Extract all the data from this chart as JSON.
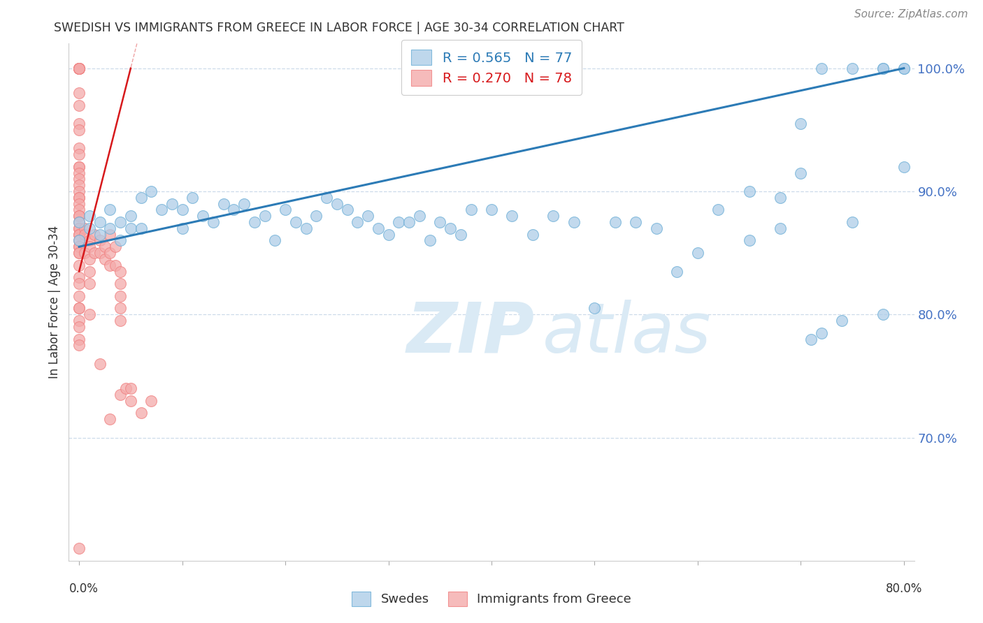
{
  "title": "SWEDISH VS IMMIGRANTS FROM GREECE IN LABOR FORCE | AGE 30-34 CORRELATION CHART",
  "source": "Source: ZipAtlas.com",
  "ylabel": "In Labor Force | Age 30-34",
  "legend_label1": "Swedes",
  "legend_label2": "Immigrants from Greece",
  "r1": 0.565,
  "n1": 77,
  "r2": 0.27,
  "n2": 78,
  "blue_color": "#aecde8",
  "pink_color": "#f4aaaa",
  "blue_edge_color": "#6baed6",
  "pink_edge_color": "#f08080",
  "blue_line_color": "#2c7bb6",
  "pink_line_color": "#d7191c",
  "grid_color": "#c8d8e8",
  "text_color": "#4472c4",
  "title_color": "#333333",
  "xlim": [
    0.0,
    0.8
  ],
  "ylim": [
    60.0,
    102.0
  ],
  "ytick_vals": [
    70,
    80,
    90,
    100
  ],
  "blue_x": [
    0.0,
    0.0,
    0.01,
    0.01,
    0.02,
    0.02,
    0.03,
    0.03,
    0.04,
    0.04,
    0.05,
    0.05,
    0.06,
    0.06,
    0.07,
    0.08,
    0.09,
    0.1,
    0.1,
    0.11,
    0.12,
    0.13,
    0.14,
    0.15,
    0.16,
    0.17,
    0.18,
    0.19,
    0.2,
    0.21,
    0.22,
    0.23,
    0.24,
    0.25,
    0.26,
    0.27,
    0.28,
    0.29,
    0.3,
    0.31,
    0.32,
    0.33,
    0.34,
    0.35,
    0.36,
    0.37,
    0.38,
    0.4,
    0.42,
    0.44,
    0.46,
    0.48,
    0.5,
    0.52,
    0.54,
    0.56,
    0.58,
    0.6,
    0.62,
    0.65,
    0.68,
    0.7,
    0.72,
    0.75,
    0.78,
    0.8,
    0.7,
    0.72,
    0.75,
    0.78,
    0.8,
    0.65,
    0.68,
    0.71,
    0.74,
    0.78,
    0.8
  ],
  "blue_y": [
    87.5,
    86.0,
    87.0,
    88.0,
    86.5,
    87.5,
    87.0,
    88.5,
    86.0,
    87.5,
    87.0,
    88.0,
    89.5,
    87.0,
    90.0,
    88.5,
    89.0,
    87.0,
    88.5,
    89.5,
    88.0,
    87.5,
    89.0,
    88.5,
    89.0,
    87.5,
    88.0,
    86.0,
    88.5,
    87.5,
    87.0,
    88.0,
    89.5,
    89.0,
    88.5,
    87.5,
    88.0,
    87.0,
    86.5,
    87.5,
    87.5,
    88.0,
    86.0,
    87.5,
    87.0,
    86.5,
    88.5,
    88.5,
    88.0,
    86.5,
    88.0,
    87.5,
    80.5,
    87.5,
    87.5,
    87.0,
    83.5,
    85.0,
    88.5,
    90.0,
    89.5,
    91.5,
    78.5,
    87.5,
    80.0,
    92.0,
    95.5,
    100.0,
    100.0,
    100.0,
    100.0,
    86.0,
    87.0,
    78.0,
    79.5,
    100.0,
    100.0
  ],
  "pink_x": [
    0.0,
    0.0,
    0.0,
    0.0,
    0.0,
    0.0,
    0.0,
    0.0,
    0.0,
    0.0,
    0.0,
    0.0,
    0.0,
    0.0,
    0.0,
    0.0,
    0.0,
    0.0,
    0.0,
    0.0,
    0.0,
    0.0,
    0.0,
    0.0,
    0.0,
    0.0,
    0.0,
    0.0,
    0.0,
    0.0,
    0.0,
    0.0,
    0.0,
    0.0,
    0.0,
    0.0,
    0.0,
    0.0,
    0.0,
    0.0,
    0.0,
    0.0,
    0.0,
    0.0,
    0.005,
    0.005,
    0.005,
    0.01,
    0.01,
    0.01,
    0.01,
    0.01,
    0.01,
    0.015,
    0.015,
    0.02,
    0.02,
    0.02,
    0.025,
    0.025,
    0.03,
    0.03,
    0.03,
    0.03,
    0.035,
    0.035,
    0.04,
    0.04,
    0.04,
    0.04,
    0.04,
    0.04,
    0.045,
    0.05,
    0.05,
    0.06,
    0.07,
    0.0
  ],
  "pink_y": [
    100.0,
    100.0,
    100.0,
    100.0,
    100.0,
    100.0,
    98.0,
    97.0,
    95.5,
    95.0,
    93.5,
    93.0,
    92.0,
    92.0,
    91.5,
    91.0,
    90.5,
    90.0,
    89.5,
    89.5,
    89.0,
    88.5,
    88.0,
    88.0,
    87.5,
    87.0,
    87.0,
    86.5,
    86.5,
    86.0,
    85.5,
    85.5,
    85.0,
    85.0,
    84.0,
    83.0,
    82.5,
    81.5,
    80.5,
    80.5,
    79.5,
    79.0,
    78.0,
    77.5,
    87.0,
    86.5,
    85.0,
    86.0,
    85.5,
    84.5,
    83.5,
    82.5,
    80.0,
    86.5,
    85.0,
    86.0,
    85.0,
    76.0,
    85.5,
    84.5,
    86.5,
    85.0,
    84.0,
    71.5,
    85.5,
    84.0,
    83.5,
    82.5,
    81.5,
    80.5,
    79.5,
    73.5,
    74.0,
    74.0,
    73.0,
    72.0,
    73.0,
    61.0
  ],
  "blue_line_x": [
    0.0,
    0.8
  ],
  "blue_line_y": [
    85.5,
    100.0
  ],
  "pink_line_x": [
    0.0,
    0.05
  ],
  "pink_line_y": [
    83.5,
    100.0
  ]
}
